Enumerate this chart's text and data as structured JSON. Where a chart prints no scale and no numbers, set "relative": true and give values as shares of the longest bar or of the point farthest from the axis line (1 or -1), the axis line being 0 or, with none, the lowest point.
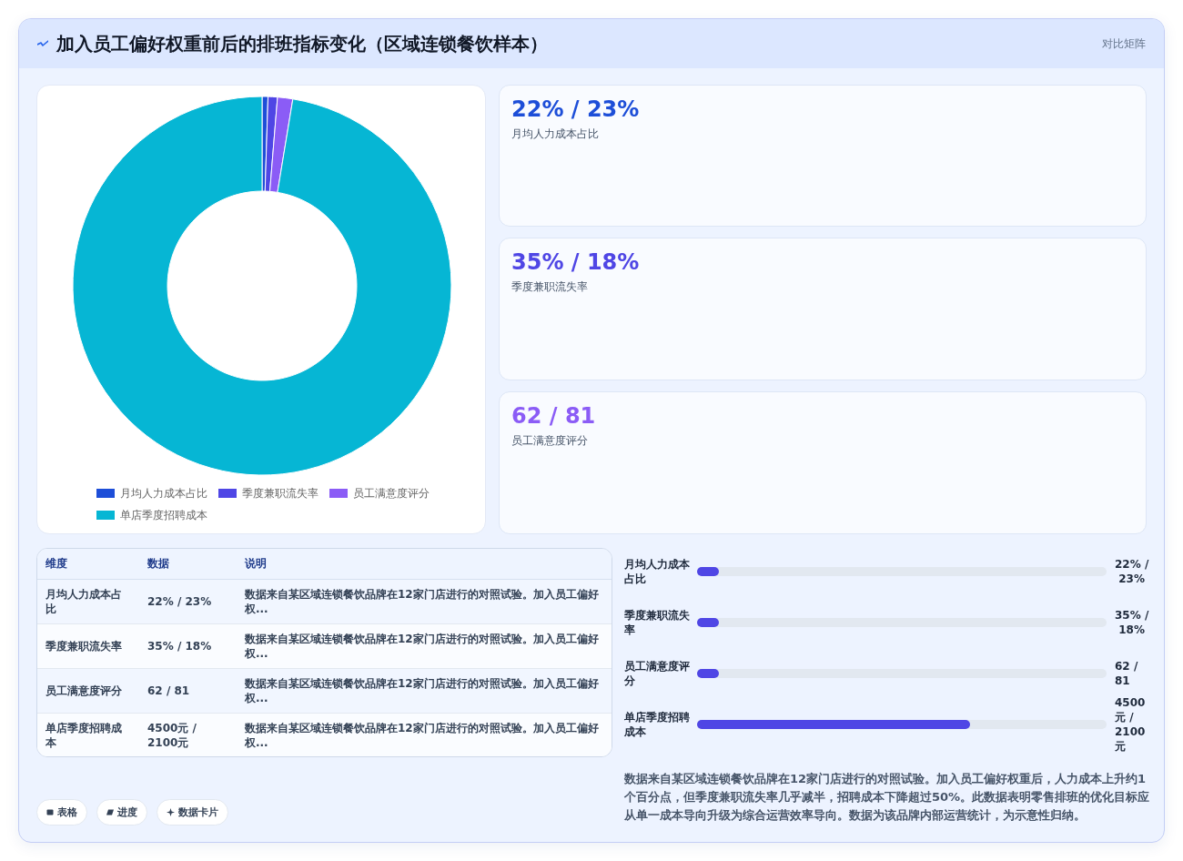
{
  "chart_data": [
    {
      "type": "donut",
      "title": "加入员工偏好权重前后的排班指标变化（区域连锁餐饮样本）",
      "annotations": [
        "对比矩阵"
      ],
      "categories": [
        "月均人力成本占比",
        "季度兼职流失率",
        "员工满意度评分",
        "单店季度招聘成本"
      ],
      "values": [
        0.5,
        0.8,
        1.3,
        97.4
      ],
      "colors": [
        "#1d4ed8",
        "#4f46e5",
        "#8b5cf6",
        "#06b6d4"
      ],
      "legend": "bottom"
    },
    {
      "type": "other",
      "annotations": [
        "22% / 23%",
        "月均人力成本占比",
        "35% / 18%",
        "季度兼职流失率",
        "62 / 81",
        "员工满意度评分"
      ]
    },
    {
      "type": "other",
      "annotations": [
        "维度",
        "数据",
        "说明",
        "月均人力成本占比",
        "22% / 23%",
        "数据来自某区域连锁餐饮品牌在12家门店进行的对照试验。加入员工偏好权...",
        "季度兼职流失率",
        "35% / 18%",
        "数据来自某区域连锁餐饮品牌在12家门店进行的对照试验。加入员工偏好权...",
        "员工满意度评分",
        "62 / 81",
        "数据来自某区域连锁餐饮品牌在12家门店进行的对照试验。加入员工偏好权...",
        "单店季度招聘成本",
        "4500元 / 2100元",
        "数据来自某区域连锁餐饮品牌在12家门店进行的对照试验。加入员工偏好权..."
      ]
    },
    {
      "type": "bar",
      "orientation": "horizontal",
      "relative": true,
      "categories": [
        "月均人力成本占比",
        "季度兼职流失率",
        "员工满意度评分",
        "单店季度招聘成本"
      ],
      "series": [
        {
          "color": "#4f46e5",
          "values": [
            0.08,
            0.08,
            0.08,
            1
          ]
        }
      ],
      "value_labels": [
        "22% / 23%",
        "35% / 18%",
        "62 / 81",
        "4500元 / 2100元"
      ],
      "annotations": [
        "数据来自某区域连锁餐饮品牌在12家门店进行的对照试验。加入员工偏好权重后，人力成本上升约1个百分点，但季度兼职流失率几乎减半，招聘成本下降超过50%。此数据表明零售排班的优化目标应从单一成本导向升级为综合运营效率导向。数据为该品牌内部运营统计，为示意性归纳。"
      ]
    },
    {
      "type": "other",
      "annotations": [
        "表格",
        "进度",
        "数据卡片"
      ]
    }
  ]
}
